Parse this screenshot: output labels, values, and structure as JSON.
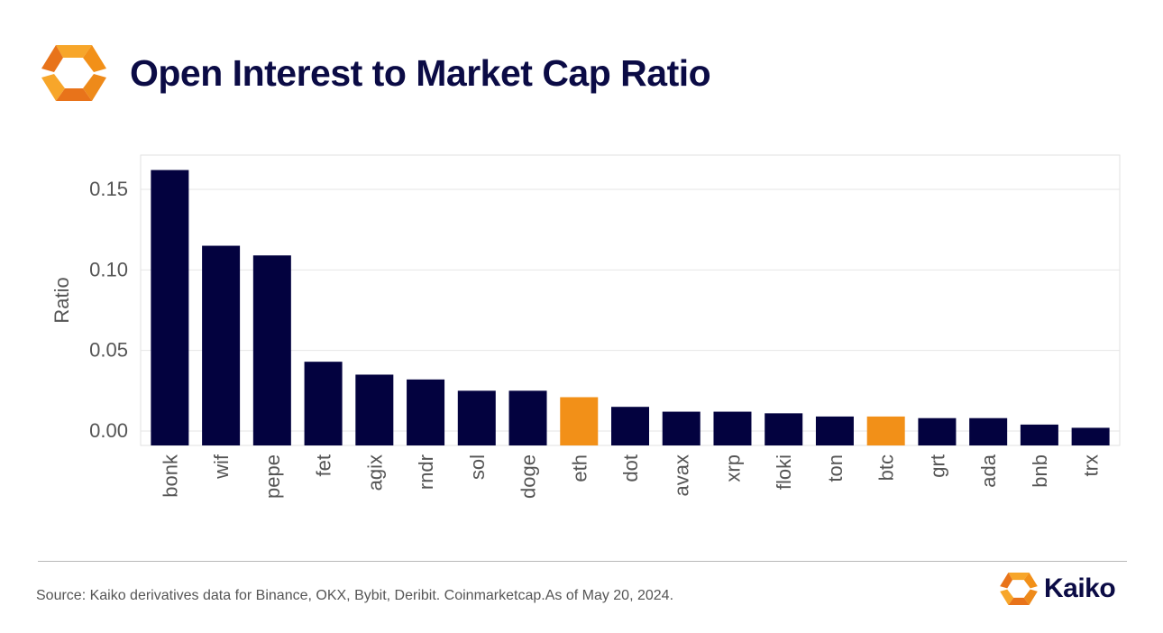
{
  "header": {
    "title": "Open Interest to Market Cap Ratio"
  },
  "chart_data": {
    "type": "bar",
    "title": "Open Interest to Market Cap Ratio",
    "xlabel": "",
    "ylabel": "Ratio",
    "categories": [
      "bonk",
      "wif",
      "pepe",
      "fet",
      "agix",
      "rndr",
      "sol",
      "doge",
      "eth",
      "dot",
      "avax",
      "xrp",
      "floki",
      "ton",
      "btc",
      "grt",
      "ada",
      "bnb",
      "trx"
    ],
    "values": [
      0.162,
      0.115,
      0.109,
      0.043,
      0.035,
      0.032,
      0.025,
      0.025,
      0.021,
      0.015,
      0.012,
      0.012,
      0.011,
      0.009,
      0.009,
      0.008,
      0.008,
      0.004,
      0.002
    ],
    "highlighted": [
      "eth",
      "btc"
    ],
    "yticks": [
      "0.00",
      "0.05",
      "0.10",
      "0.15"
    ],
    "ylim": [
      0,
      0.17
    ],
    "grid": true,
    "legend": "none",
    "colors": {
      "bar": "#03023f",
      "highlight": "#f29018",
      "grid": "#e6e6e6",
      "axis_text": "#555555"
    }
  },
  "footer": {
    "source": "Source: Kaiko derivatives data for Binance, OKX, Bybit, Deribit. Coinmarketcap.As of May 20, 2024.",
    "brand": "Kaiko"
  },
  "colors": {
    "title": "#0b0b45",
    "logo_orange": "#f29018",
    "logo_orange_dark": "#e8731a"
  },
  "icons": {
    "logo": "kaiko-logo-icon"
  }
}
